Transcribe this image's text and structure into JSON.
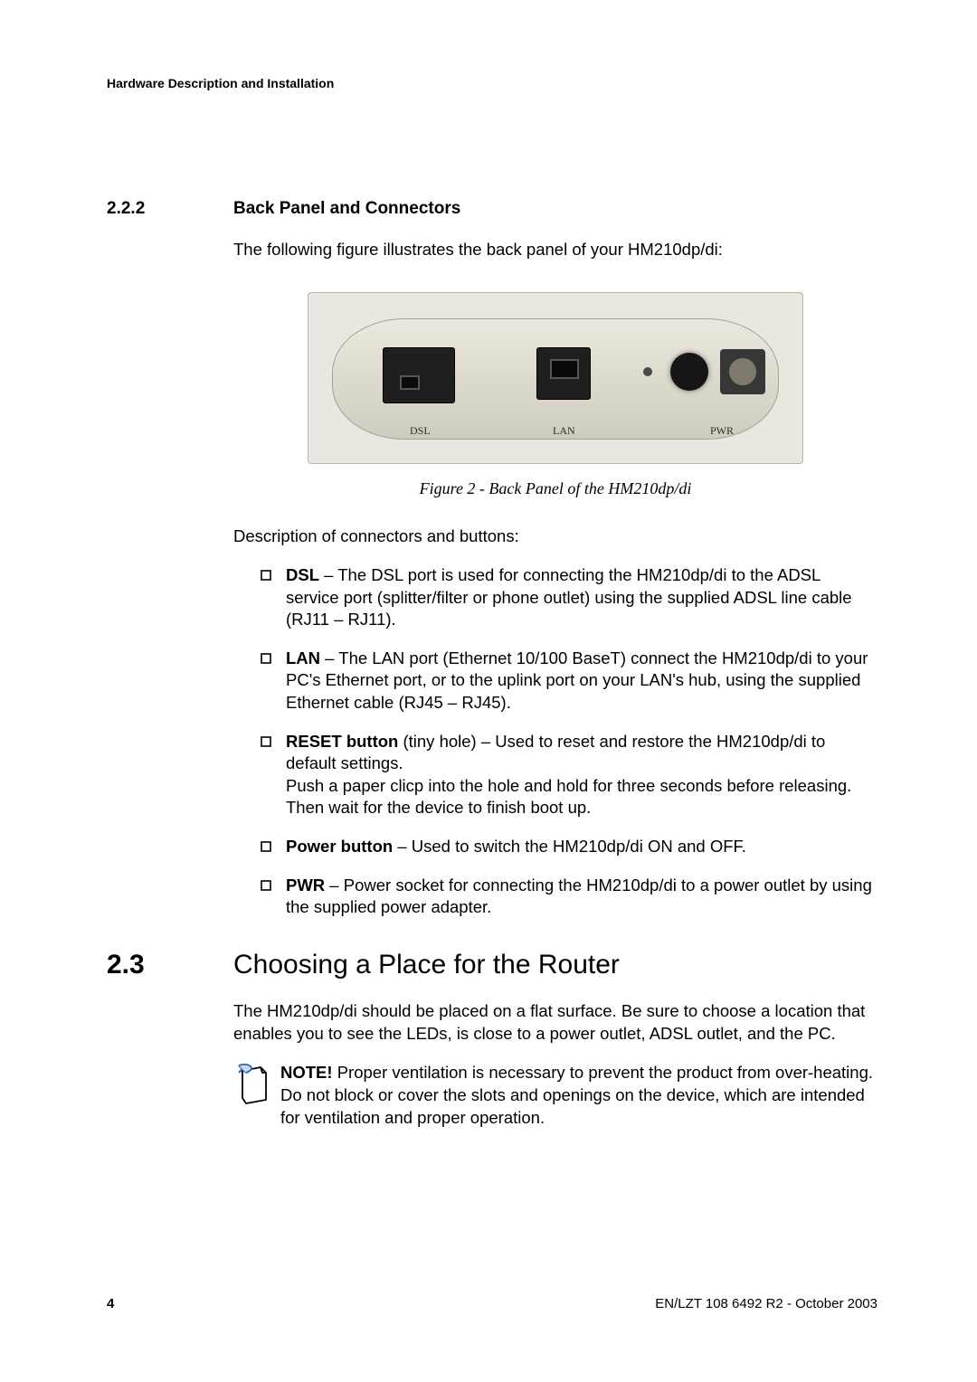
{
  "header": "Hardware Description and Installation",
  "section222": {
    "number": "2.2.2",
    "title": "Back Panel and Connectors",
    "intro": "The following figure illustrates the back panel of your HM210dp/di:",
    "figure_labels": {
      "dsl": "DSL",
      "lan": "LAN",
      "pwr": "PWR"
    },
    "caption": "Figure 2 - Back Panel of the HM210dp/di",
    "desc_intro": "Description of connectors and buttons:",
    "items": [
      {
        "bold": "DSL",
        "text": " – The DSL port is used for connecting the HM210dp/di to the ADSL service port (splitter/filter or phone outlet) using the supplied ADSL line cable (RJ11 – RJ11)."
      },
      {
        "bold": "LAN",
        "text": " – The LAN port (Ethernet 10/100 BaseT) connect the HM210dp/di to your PC's Ethernet port, or to the uplink port on your LAN's hub, using the supplied Ethernet cable (RJ45 – RJ45)."
      },
      {
        "bold": "RESET button",
        "text": " (tiny hole) – Used to reset and restore the HM210dp/di to default settings.\nPush a paper clicp into the hole and hold for three seconds before releasing. Then wait for the device to finish boot up."
      },
      {
        "bold": "Power button",
        "text": " – Used to switch the HM210dp/di ON and OFF."
      },
      {
        "bold": "PWR",
        "text": " – Power socket for connecting the HM210dp/di to a power outlet by using the supplied power adapter."
      }
    ]
  },
  "section23": {
    "number": "2.3",
    "title": "Choosing a Place for the Router",
    "para": "The HM210dp/di should be placed on a flat surface. Be sure to choose a location that enables you to see the LEDs, is close to a power outlet, ADSL outlet, and the PC.",
    "note_bold": "NOTE!",
    "note_text": " Proper ventilation is necessary to prevent the product from over-heating. Do not block or cover the slots and openings on the device, which are intended for ventilation and proper operation."
  },
  "footer": {
    "page": "4",
    "docref": "EN/LZT 108 6492 R2  -  October 2003"
  },
  "colors": {
    "text": "#000000",
    "device_bg": "#e9e7e0",
    "port_bg": "#1f1f1f"
  }
}
